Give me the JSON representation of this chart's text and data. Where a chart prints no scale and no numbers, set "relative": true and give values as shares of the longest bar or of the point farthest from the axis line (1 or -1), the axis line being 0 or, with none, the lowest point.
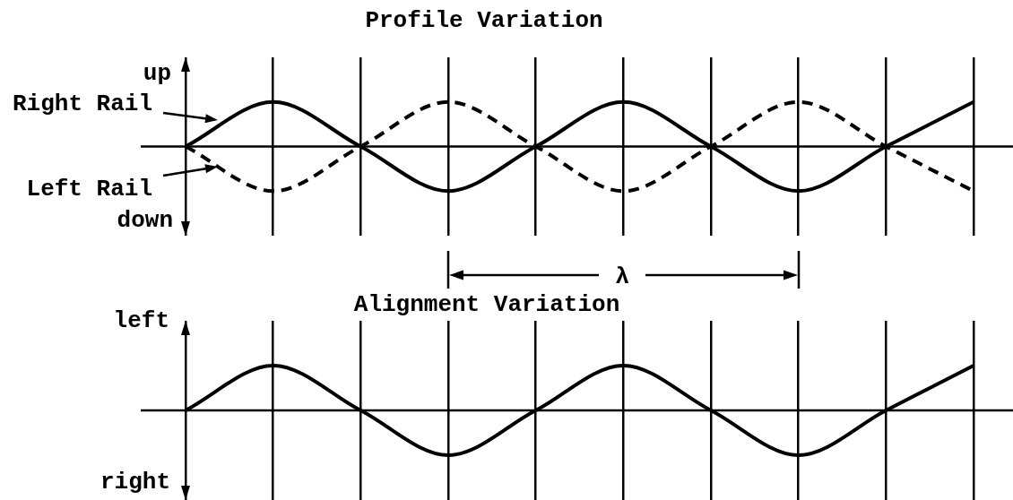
{
  "chart_data": [
    {
      "type": "line",
      "title": "Profile Variation",
      "categories": [
        null,
        null,
        null,
        null,
        null,
        null,
        null,
        null,
        null,
        null
      ],
      "series": [
        {
          "name": "Right Rail",
          "color": "#000000",
          "values": [
            0,
            1,
            0,
            -1,
            0,
            1,
            0,
            -1,
            0,
            1
          ]
        },
        {
          "name": "Left Rail",
          "color": "#000000",
          "line_style": "dashed",
          "values": [
            0,
            -1,
            0,
            1,
            0,
            -1,
            0,
            1,
            0,
            -1
          ]
        }
      ],
      "relative": true,
      "grid": "x",
      "tick_labels": false,
      "marker": "none",
      "line_style": "solid",
      "annotations": [
        "up",
        "down"
      ]
    },
    {
      "type": "line",
      "title": "Alignment Variation",
      "categories": [
        null,
        null,
        null,
        null,
        null,
        null,
        null,
        null,
        null,
        null
      ],
      "series": [
        {
          "color": "#000000",
          "values": [
            0,
            1,
            0,
            -1,
            0,
            1,
            0,
            -1,
            0,
            1
          ]
        }
      ],
      "relative": true,
      "grid": "x",
      "tick_labels": false,
      "marker": "none",
      "line_style": "solid",
      "annotations": [
        "λ",
        "left",
        "right"
      ]
    }
  ]
}
